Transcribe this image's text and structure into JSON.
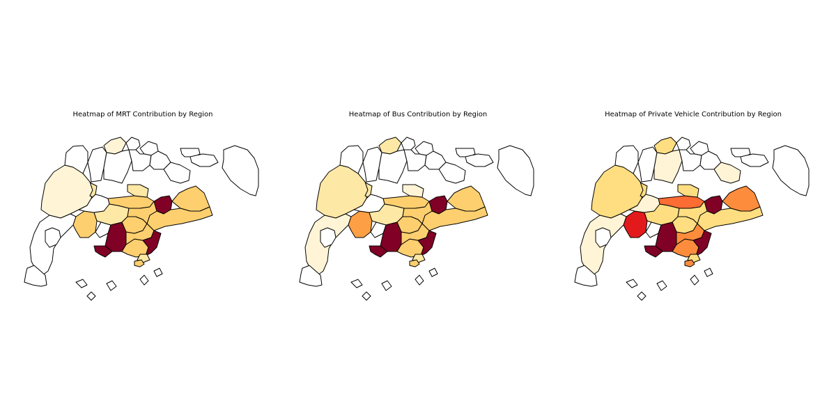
{
  "figure": {
    "background": "#ffffff",
    "colormap": "YlOrRd",
    "region_stroke": "#000000",
    "panels": [
      {
        "title": "Heatmap of MRT Contribution by Region",
        "regions": {
          "nw_woodlands": "#fff4d6",
          "n_yishun": "#fff4d6",
          "n_kranji": "#ffffff",
          "n_sembawang": "#ffffff",
          "ne_coast": "#ffffff",
          "ne_punggol": "#ffffff",
          "ne_sengkang": "#ffffff",
          "ne_hougang": "#ffffff",
          "c_amk": "#ffffff",
          "c_bishan": "#fee8a5",
          "w_jurong_west": "#ffffff",
          "w_bukit_batok": "#fdcf6f",
          "w_choa_chu_kang": "#fee8a5",
          "w_bukit_panjang": "#ffffff",
          "w_clementi": "#fdcf6f",
          "w_jurong_east": "#ffffff",
          "c_bukit_timah": "#fdcf6f",
          "c_toa_payoh": "#fdcf6f",
          "c_novena": "#fee8a5",
          "c_tanglin": "#800026",
          "c_queenstown": "#800026",
          "c_core": "#fdcf6f",
          "c_downtown": "#800026",
          "c_marina": "#fee8a5",
          "c_geylang": "#fdcf6f",
          "e_paya_lebar": "#800026",
          "e_bedok": "#fdcf6f",
          "e_tampines": "#fdcf6f",
          "e_pasir_ris": "#ffffff",
          "e_changi": "#ffffff",
          "e_changi_bay": "#ffffff",
          "ne_islands": "#ffffff",
          "w_tuas": "#ffffff",
          "w_western_islands": "#ffffff",
          "s_southern_islands": "#fdcf6f",
          "s_islets": "#ffffff"
        }
      },
      {
        "title": "Heatmap of Bus Contribution by Region",
        "regions": {
          "nw_woodlands": "#fee8a5",
          "n_yishun": "#fee8a5",
          "n_kranji": "#ffffff",
          "n_sembawang": "#ffffff",
          "ne_coast": "#ffffff",
          "ne_punggol": "#ffffff",
          "ne_sengkang": "#ffffff",
          "ne_hougang": "#ffffff",
          "c_amk": "#ffffff",
          "c_bishan": "#fee8a5",
          "w_jurong_west": "#fff4d6",
          "w_bukit_batok": "#fd9f44",
          "w_choa_chu_kang": "#fee8a5",
          "w_bukit_panjang": "#ffffff",
          "w_clementi": "#fdcf6f",
          "w_jurong_east": "#ffffff",
          "c_bukit_timah": "#fdcf6f",
          "c_toa_payoh": "#fdcf6f",
          "c_novena": "#fff4d6",
          "c_tanglin": "#800026",
          "c_queenstown": "#800026",
          "c_core": "#fdcf6f",
          "c_downtown": "#800026",
          "c_marina": "#fee8a5",
          "c_geylang": "#fdcf6f",
          "e_paya_lebar": "#800026",
          "e_bedok": "#fdcf6f",
          "e_tampines": "#fdcf6f",
          "e_pasir_ris": "#ffffff",
          "e_changi": "#ffffff",
          "e_changi_bay": "#ffffff",
          "ne_islands": "#ffffff",
          "w_tuas": "#ffffff",
          "w_western_islands": "#ffffff",
          "s_southern_islands": "#fdcf6f",
          "s_islets": "#ffffff"
        }
      },
      {
        "title": "Heatmap of Private Vehicle Contribution by Region",
        "regions": {
          "nw_woodlands": "#fede81",
          "n_yishun": "#fede81",
          "n_kranji": "#ffffff",
          "n_sembawang": "#ffffff",
          "ne_coast": "#ffffff",
          "ne_punggol": "#ffffff",
          "ne_sengkang": "#fff4d6",
          "ne_hougang": "#ffffff",
          "c_amk": "#ffffff",
          "c_bishan": "#fede81",
          "w_jurong_west": "#fff4d6",
          "w_bukit_batok": "#e31a1c",
          "w_choa_chu_kang": "#fede81",
          "w_bukit_panjang": "#fff4d6",
          "w_clementi": "#fede81",
          "w_jurong_east": "#ffffff",
          "c_bukit_timah": "#fede81",
          "c_toa_payoh": "#fc6c33",
          "c_novena": "#fede81",
          "c_tanglin": "#800026",
          "c_queenstown": "#800026",
          "c_core": "#fd8d3c",
          "c_downtown": "#800026",
          "c_marina": "#fede81",
          "c_geylang": "#fd8d3c",
          "e_paya_lebar": "#800026",
          "e_bedok": "#fede81",
          "e_tampines": "#fd8d3c",
          "e_pasir_ris": "#fff4d6",
          "e_changi": "#ffffff",
          "e_changi_bay": "#ffffff",
          "ne_islands": "#ffffff",
          "w_tuas": "#ffffff",
          "w_western_islands": "#ffffff",
          "s_southern_islands": "#fd8d3c",
          "s_islets": "#ffffff"
        }
      }
    ]
  }
}
